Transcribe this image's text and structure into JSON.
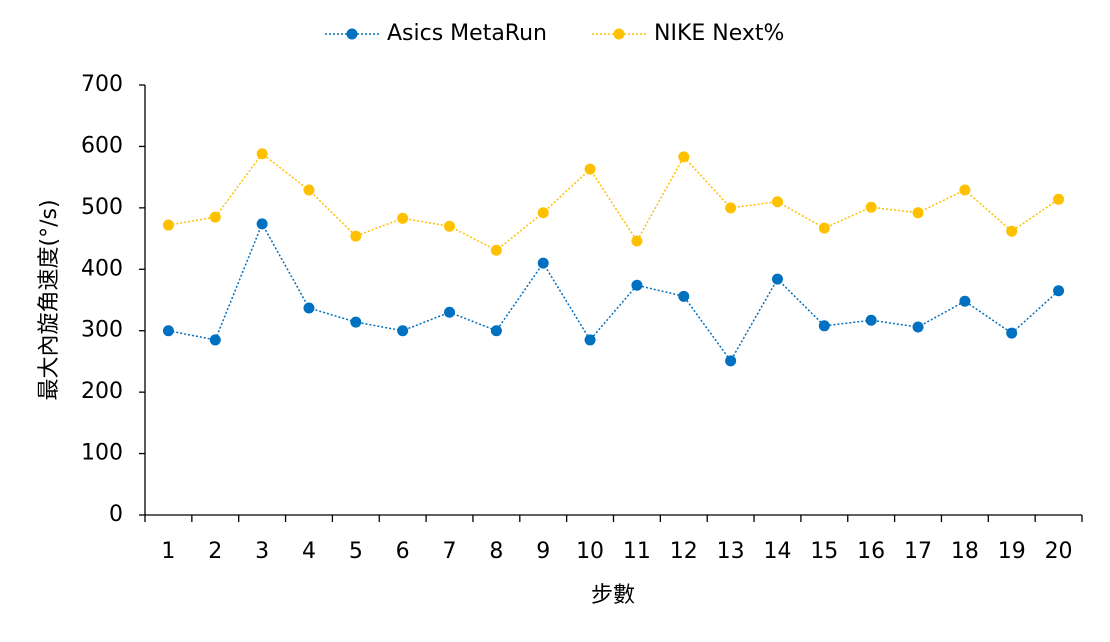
{
  "chart_data": {
    "type": "line",
    "categories": [
      "1",
      "2",
      "3",
      "4",
      "5",
      "6",
      "7",
      "8",
      "9",
      "10",
      "11",
      "12",
      "13",
      "14",
      "15",
      "16",
      "17",
      "18",
      "19",
      "20"
    ],
    "series": [
      {
        "name": "Asics MetaRun",
        "color": "#0070c0",
        "values": [
          300,
          285,
          474,
          337,
          314,
          300,
          330,
          300,
          410,
          285,
          374,
          356,
          251,
          384,
          308,
          317,
          306,
          348,
          296,
          365
        ]
      },
      {
        "name": "NIKE Next%",
        "color": "#ffc000",
        "values": [
          472,
          485,
          588,
          529,
          454,
          483,
          470,
          431,
          492,
          563,
          446,
          583,
          500,
          510,
          467,
          501,
          492,
          529,
          462,
          514
        ]
      }
    ],
    "ylim": [
      0,
      700
    ],
    "yticks": [
      0,
      100,
      200,
      300,
      400,
      500,
      600,
      700
    ],
    "y_label": "最大內旋角速度(°/s)",
    "x_label": "步數",
    "legend": "top"
  }
}
